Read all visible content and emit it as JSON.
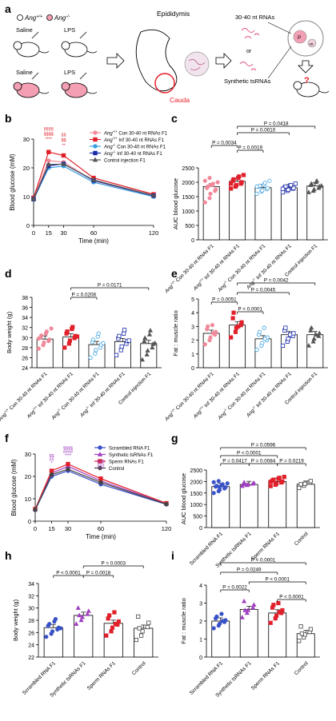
{
  "figure": {
    "panel_labels": [
      "a",
      "b",
      "c",
      "d",
      "e",
      "f",
      "g",
      "h",
      "i"
    ],
    "schematic": {
      "genotype_wt": "Ang",
      "genotype_wt_sup": "+/+",
      "genotype_ko": "Ang",
      "genotype_ko_sup": "-/-",
      "saline": "Saline",
      "lps": "LPS",
      "epididymis": "Epididymis",
      "cauda": "Cauda",
      "rna_30_40": "30-40 nt RNAs",
      "or": "or",
      "synthetic": "Synthetic tsRNAs",
      "pronucleus_p": "P",
      "pronucleus_m": "m",
      "question": "?",
      "colors": {
        "wt_fill": "#ffffff",
        "ko_fill": "#f4a0b4",
        "cauda": "#e8202a"
      }
    }
  },
  "chart_data": [
    {
      "panel": "b",
      "type": "line",
      "title": "",
      "xlabel": "Time (min)",
      "ylabel": "Blood glucose (mM)",
      "x": [
        0,
        15,
        30,
        60,
        120
      ],
      "xticks": [
        "0",
        "15",
        "30",
        "60",
        "120"
      ],
      "ylim": [
        0,
        30
      ],
      "yticks": [
        "0",
        "10",
        "20",
        "30"
      ],
      "series": [
        {
          "name": "Ang+/+ Con 30-40 nt RNAs F1",
          "color": "#f08a9a",
          "marker": "circle",
          "values": [
            9.3,
            22.5,
            22.0,
            15.5,
            10.2
          ]
        },
        {
          "name": "Ang+/+ Inf 30-40 nt RNAs F1",
          "color": "#e0202a",
          "marker": "square",
          "values": [
            9.6,
            25.5,
            24.3,
            16.5,
            10.8
          ]
        },
        {
          "name": "Ang-/- Con 30-40 nt RNAs F1",
          "color": "#3aa0e0",
          "marker": "circle",
          "values": [
            9.0,
            20.0,
            20.6,
            15.0,
            10.0
          ]
        },
        {
          "name": "Ang-/- Inf 30-40 nt RNAs F1",
          "color": "#1a2aa8",
          "marker": "square",
          "values": [
            9.1,
            20.7,
            21.4,
            15.6,
            10.3
          ]
        },
        {
          "name": "Control injection F1",
          "color": "#555555",
          "marker": "triangle",
          "values": [
            9.2,
            21.2,
            21.3,
            15.8,
            10.4
          ]
        }
      ],
      "annotations": [
        "§§§§",
        "$$$$",
        "****",
        "§§",
        "$$",
        "**"
      ],
      "legend_labels": [
        {
          "pre": "Ang",
          "sup": "+/+",
          "post": " Con 30-40 nt RNAs F1"
        },
        {
          "pre": "Ang",
          "sup": "+/+",
          "post": " Inf 30-40 nt RNAs F1"
        },
        {
          "pre": "Ang",
          "sup": "-/-",
          "post": " Con 30-40 nt RNAs F1"
        },
        {
          "pre": "Ang",
          "sup": "-/-",
          "post": " Inf 30-40 nt RNAs F1"
        },
        {
          "pre": "",
          "sup": "",
          "post": "Control injection F1"
        }
      ]
    },
    {
      "panel": "c",
      "type": "bar",
      "title": "",
      "xlabel": "",
      "ylabel": "AUC blood glucose",
      "ylim": [
        0,
        2500
      ],
      "yticks": [
        "0",
        "500",
        "1000",
        "1500",
        "2000",
        "2500"
      ],
      "categories": [
        {
          "pre": "Ang",
          "sup": "+/+",
          "post": " Con 30-40 nt RNAs F1"
        },
        {
          "pre": "Ang",
          "sup": "+/+",
          "post": " Inf 30-40 nt RNAs F1"
        },
        {
          "pre": "Ang",
          "sup": "-/-",
          "post": " Con 30-40 nt RNAs F1"
        },
        {
          "pre": "Ang",
          "sup": "-/-",
          "post": " Inf 30-40 nt RNAs F1"
        },
        {
          "pre": "",
          "sup": "",
          "post": "Control injection F1"
        }
      ],
      "values": [
        1850,
        2030,
        1810,
        1810,
        1870
      ],
      "colors": [
        "#f08a9a",
        "#e0202a",
        "#3aa0e0",
        "#1a2aa8",
        "#555555"
      ],
      "markers": [
        "circle",
        "square",
        "circle",
        "square",
        "triangle"
      ],
      "filled": [
        true,
        true,
        false,
        false,
        true
      ],
      "points": [
        [
          1300,
          1450,
          1600,
          1700,
          1750,
          1800,
          1850,
          1900,
          1950,
          2000,
          2050,
          2150,
          1900
        ],
        [
          1780,
          1850,
          1900,
          1950,
          2000,
          2050,
          2100,
          2150,
          2200,
          2250,
          1950
        ],
        [
          1600,
          1680,
          1720,
          1760,
          1800,
          1840,
          1880,
          1920,
          1980,
          2050,
          1850
        ],
        [
          1650,
          1700,
          1740,
          1780,
          1800,
          1820,
          1850,
          1880,
          1900,
          1950,
          1770
        ],
        [
          1650,
          1700,
          1750,
          1800,
          1850,
          1900,
          1950,
          2000,
          2050,
          1880
        ]
      ],
      "comparisons": [
        {
          "from": 0,
          "to": 1,
          "label": "P = 0.0034"
        },
        {
          "from": 1,
          "to": 2,
          "label": "P = 0.0019"
        },
        {
          "from": 1,
          "to": 3,
          "label": "P = 0.0010"
        },
        {
          "from": 1,
          "to": 4,
          "label": "P = 0.0418"
        }
      ]
    },
    {
      "panel": "d",
      "type": "bar",
      "title": "",
      "xlabel": "",
      "ylabel": "Body weight (g)",
      "ylim": [
        24,
        38
      ],
      "yticks": [
        "24",
        "26",
        "28",
        "30",
        "32",
        "34",
        "36",
        "38"
      ],
      "categories": [
        {
          "pre": "Ang",
          "sup": "+/+",
          "post": " Con 30-40 nt RNAs F1"
        },
        {
          "pre": "Ang",
          "sup": "+/+",
          "post": " Inf 30-40 nt RNAs F1"
        },
        {
          "pre": "Ang",
          "sup": "-/-",
          "post": " Con 30-40 nt RNAs F1"
        },
        {
          "pre": "Ang",
          "sup": "-/-",
          "post": " Inf 30-40 nt RNAs F1"
        },
        {
          "pre": "",
          "sup": "",
          "post": "Control injection F1"
        }
      ],
      "values": [
        29.7,
        30.1,
        28.6,
        29.2,
        28.8
      ],
      "colors": [
        "#f08a9a",
        "#e0202a",
        "#3aa0e0",
        "#1a2aa8",
        "#555555"
      ],
      "markers": [
        "circle",
        "square",
        "circle",
        "square",
        "triangle"
      ],
      "filled": [
        true,
        true,
        false,
        false,
        true
      ],
      "points": [
        [
          27.8,
          28.5,
          29.0,
          29.3,
          29.6,
          30.0,
          30.4,
          30.8,
          31.2,
          31.8,
          29.8
        ],
        [
          28.0,
          28.8,
          29.4,
          29.9,
          30.3,
          30.8,
          31.2,
          31.7,
          32.1,
          30.2
        ],
        [
          26.0,
          26.8,
          27.5,
          28.0,
          28.6,
          29.1,
          29.6,
          30.2,
          30.8,
          28.9
        ],
        [
          26.5,
          27.5,
          28.2,
          28.8,
          29.3,
          29.8,
          30.3,
          30.8,
          31.5,
          29.4
        ],
        [
          25.6,
          26.6,
          27.4,
          28.0,
          28.7,
          29.3,
          29.9,
          30.6,
          31.4,
          28.9
        ]
      ],
      "comparisons": [
        {
          "from": 1,
          "to": 2,
          "label": "P = 0.0208"
        },
        {
          "from": 1,
          "to": 4,
          "label": "P = 0.0171"
        }
      ]
    },
    {
      "panel": "e",
      "type": "bar",
      "title": "",
      "xlabel": "",
      "ylabel": "Fat : muscle ratio",
      "ylim": [
        0,
        5
      ],
      "yticks": [
        "0",
        "1",
        "2",
        "3",
        "4",
        "5"
      ],
      "categories": [
        {
          "pre": "Ang",
          "sup": "+/+",
          "post": " Con 30-40 nt RNAs F1"
        },
        {
          "pre": "Ang",
          "sup": "+/+",
          "post": " Inf 30-40 nt RNAs F1"
        },
        {
          "pre": "Ang",
          "sup": "-/-",
          "post": " Con 30-40 nt RNAs F1"
        },
        {
          "pre": "Ang",
          "sup": "-/-",
          "post": " Inf 30-40 nt RNAs F1"
        },
        {
          "pre": "",
          "sup": "",
          "post": "Control injection F1"
        }
      ],
      "values": [
        2.5,
        3.1,
        2.1,
        2.4,
        2.4
      ],
      "colors": [
        "#f08a9a",
        "#e0202a",
        "#3aa0e0",
        "#1a2aa8",
        "#555555"
      ],
      "markers": [
        "circle",
        "square",
        "circle",
        "square",
        "triangle"
      ],
      "filled": [
        true,
        true,
        false,
        false,
        true
      ],
      "points": [
        [
          1.7,
          2.0,
          2.2,
          2.4,
          2.6,
          2.8,
          3.0,
          3.1,
          2.5
        ],
        [
          2.2,
          2.6,
          2.9,
          3.1,
          3.3,
          3.6,
          4.0,
          3.0
        ],
        [
          1.3,
          1.6,
          1.8,
          2.0,
          2.2,
          2.4,
          2.6,
          2.9,
          2.1
        ],
        [
          1.6,
          1.9,
          2.1,
          2.3,
          2.5,
          2.7,
          2.9,
          2.4
        ],
        [
          1.6,
          1.9,
          2.1,
          2.3,
          2.5,
          2.7,
          2.9,
          2.4
        ]
      ],
      "comparisons": [
        {
          "from": 0,
          "to": 1,
          "label": "P = 0.0051"
        },
        {
          "from": 1,
          "to": 2,
          "label": "P < 0.0001"
        },
        {
          "from": 1,
          "to": 3,
          "label": "P = 0.0045"
        },
        {
          "from": 1,
          "to": 4,
          "label": "P = 0.0042"
        }
      ]
    },
    {
      "panel": "f",
      "type": "line",
      "title": "",
      "xlabel": "Time (min)",
      "ylabel": "Blood glucose (mM)",
      "x": [
        0,
        15,
        30,
        60,
        120
      ],
      "xticks": [
        "0",
        "15",
        "30",
        "60",
        "120"
      ],
      "ylim": [
        0,
        30
      ],
      "yticks": [
        "0",
        "10",
        "20",
        "30"
      ],
      "series": [
        {
          "name": "Scrambled RNA F1",
          "color": "#3a52c8",
          "marker": "circle",
          "values": [
            5.0,
            20.0,
            22.5,
            16.5,
            7.5
          ]
        },
        {
          "name": "Synthetic tsRNAs F1",
          "color": "#a040c0",
          "marker": "triangle",
          "values": [
            5.3,
            21.5,
            24.5,
            18.0,
            7.8
          ]
        },
        {
          "name": "Sperm RNAs F1",
          "color": "#e0202a",
          "marker": "square",
          "values": [
            5.4,
            22.5,
            25.5,
            19.0,
            8.0
          ]
        },
        {
          "name": "Control",
          "color": "#444444",
          "marker": "circle",
          "values": [
            5.1,
            20.8,
            23.2,
            17.3,
            7.6
          ]
        }
      ],
      "annotations": [
        "$$",
        "##",
        "*",
        "$$$$",
        "####",
        "****",
        "$$$",
        "###",
        "****"
      ]
    },
    {
      "panel": "g",
      "type": "bar",
      "title": "",
      "xlabel": "",
      "ylabel": "AUC blood glucose",
      "ylim": [
        0,
        2500
      ],
      "yticks": [
        "0",
        "500",
        "1000",
        "1500",
        "2000",
        "2500"
      ],
      "categories": [
        "Scrambled RNA F1",
        "Synthetic tsRNAs F1",
        "Sperm RNAs F1",
        "Control"
      ],
      "values": [
        1780,
        1870,
        2000,
        1880
      ],
      "colors": [
        "#3a52c8",
        "#a040c0",
        "#e0202a",
        "#444444"
      ],
      "markers": [
        "circle",
        "triangle",
        "square",
        "square"
      ],
      "filled": [
        true,
        true,
        true,
        false
      ],
      "points": [
        [
          1500,
          1580,
          1640,
          1700,
          1750,
          1780,
          1810,
          1840,
          1880,
          1920,
          1970,
          2020,
          1760
        ],
        [
          1800,
          1840,
          1870,
          1900,
          1930,
          1960,
          1880
        ],
        [
          1800,
          1860,
          1910,
          1960,
          2000,
          2040,
          2080,
          2120,
          2160,
          2200,
          1990
        ],
        [
          1720,
          1820,
          1900,
          1960,
          2020,
          1880
        ]
      ],
      "comparisons": [
        {
          "from": 0,
          "to": 1,
          "label": "P = 0.0417"
        },
        {
          "from": 1,
          "to": 2,
          "label": "P = 0.0084"
        },
        {
          "from": 2,
          "to": 3,
          "label": "P = 0.0219"
        },
        {
          "from": 0,
          "to": 2,
          "label": "P < 0.0001"
        },
        {
          "from": 0,
          "to": 3,
          "label": "P = 0.0596"
        }
      ]
    },
    {
      "panel": "h",
      "type": "bar",
      "title": "",
      "xlabel": "",
      "ylabel": "Body weight (g)",
      "ylim": [
        22,
        34
      ],
      "yticks": [
        "22",
        "24",
        "26",
        "28",
        "30",
        "32",
        "34"
      ],
      "categories": [
        "Scrambled RNA F1",
        "Synthetic tsRNAs F1",
        "Sperm RNAs F1",
        "Control"
      ],
      "values": [
        26.8,
        28.8,
        27.5,
        26.7
      ],
      "colors": [
        "#3a52c8",
        "#a040c0",
        "#e0202a",
        "#444444"
      ],
      "markers": [
        "circle",
        "triangle",
        "square",
        "square"
      ],
      "filled": [
        true,
        true,
        true,
        false
      ],
      "points": [
        [
          25.3,
          25.8,
          26.2,
          26.5,
          26.8,
          27.1,
          27.4,
          27.8,
          28.2,
          26.7
        ],
        [
          27.4,
          28.0,
          28.5,
          29.0,
          29.5,
          30.0,
          28.8
        ],
        [
          25.5,
          26.2,
          26.8,
          27.3,
          27.8,
          28.3,
          28.8,
          29.3,
          27.4
        ],
        [
          24.8,
          25.5,
          26.2,
          26.9,
          27.6,
          28.6,
          26.7
        ]
      ],
      "comparisons": [
        {
          "from": 0,
          "to": 1,
          "label": "P < 0.0001"
        },
        {
          "from": 1,
          "to": 2,
          "label": "P = 0.0018"
        },
        {
          "from": 1,
          "to": 3,
          "label": "P = 0.0003"
        }
      ]
    },
    {
      "panel": "i",
      "type": "bar",
      "title": "",
      "xlabel": "",
      "ylabel": "Fat : muscle ratio",
      "ylim": [
        0,
        4
      ],
      "yticks": [
        "0",
        "1",
        "2",
        "3",
        "4"
      ],
      "categories": [
        "Scrambled RNA F1",
        "Synthetic tsRNAs F1",
        "Sperm RNAs F1",
        "Control"
      ],
      "values": [
        2.0,
        2.65,
        2.45,
        1.3
      ],
      "colors": [
        "#3a52c8",
        "#a040c0",
        "#e0202a",
        "#444444"
      ],
      "markers": [
        "circle",
        "triangle",
        "square",
        "square"
      ],
      "filled": [
        true,
        true,
        true,
        false
      ],
      "points": [
        [
          1.6,
          1.75,
          1.85,
          1.95,
          2.05,
          2.15,
          2.25,
          2.4,
          2.0
        ],
        [
          2.2,
          2.45,
          2.6,
          2.75,
          2.9,
          3.1,
          2.6
        ],
        [
          1.9,
          2.15,
          2.3,
          2.45,
          2.6,
          2.75,
          2.9,
          3.0,
          2.5
        ],
        [
          0.9,
          1.1,
          1.25,
          1.4,
          1.55,
          1.7,
          1.3
        ]
      ],
      "comparisons": [
        {
          "from": 0,
          "to": 1,
          "label": "P = 0.0022"
        },
        {
          "from": 2,
          "to": 3,
          "label": "P < 0.0001"
        },
        {
          "from": 1,
          "to": 3,
          "label": "P < 0.0001"
        },
        {
          "from": 0,
          "to": 2,
          "label": "P = 0.0249"
        },
        {
          "from": 0,
          "to": 3,
          "label": "P < 0.0001"
        }
      ]
    }
  ]
}
